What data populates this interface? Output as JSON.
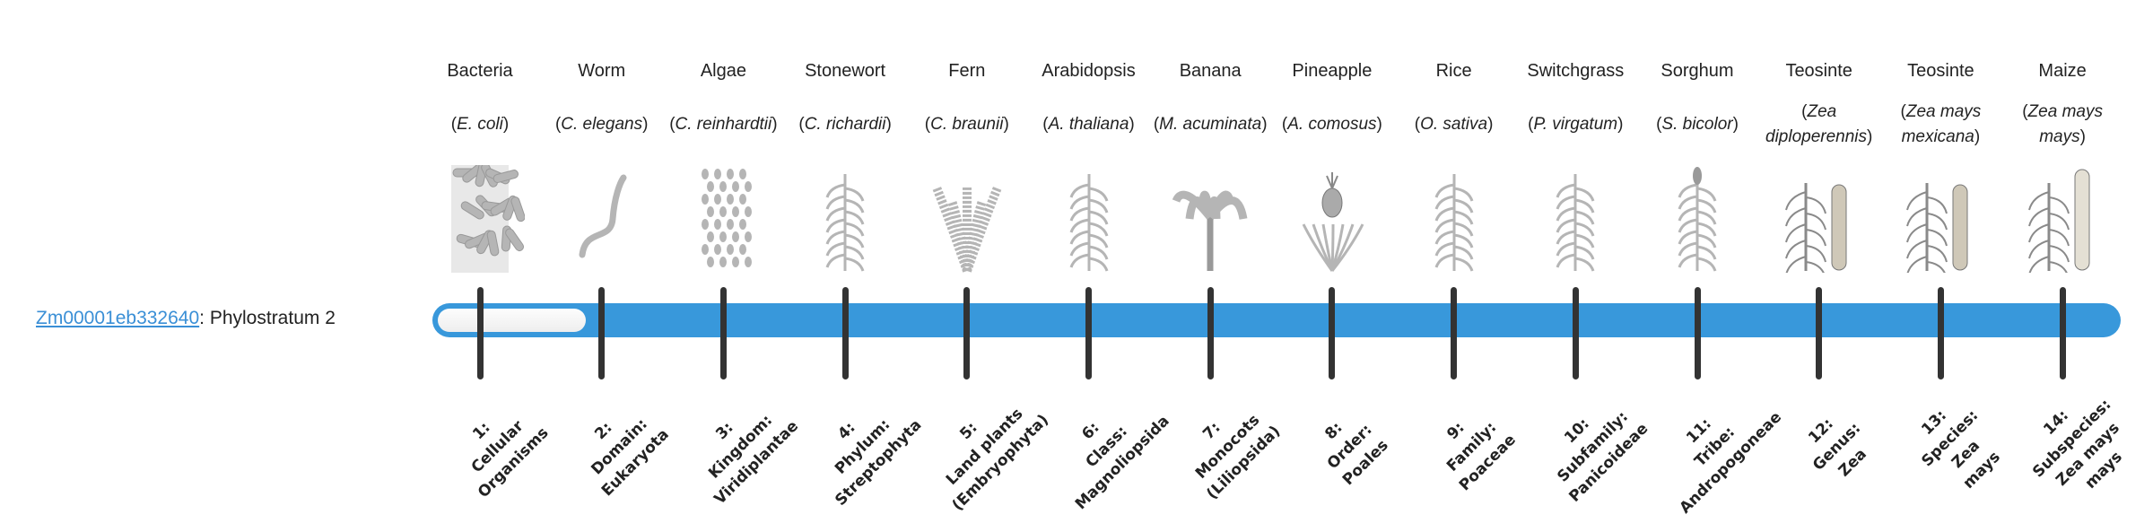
{
  "gene": {
    "id": "Zm00001eb332640",
    "separator": ": ",
    "stratum_text": "Phylostratum 2",
    "stratum_value": 2
  },
  "colors": {
    "bar": "#3898db",
    "link": "#3a8fd6",
    "tick": "#333333",
    "fill": "#f4f4f4"
  },
  "organisms": [
    {
      "name": "Bacteria",
      "species": "E. coli",
      "icon": "bacteria-icon"
    },
    {
      "name": "Worm",
      "species": "C. elegans",
      "icon": "worm-icon"
    },
    {
      "name": "Algae",
      "species": "C. reinhardtii",
      "icon": "algae-icon"
    },
    {
      "name": "Stonewort",
      "species": "C. richardii",
      "icon": "stonewort-icon"
    },
    {
      "name": "Fern",
      "species": "C. braunii",
      "icon": "fern-icon"
    },
    {
      "name": "Arabidopsis",
      "species": "A. thaliana",
      "icon": "arabidopsis-icon"
    },
    {
      "name": "Banana",
      "species": "M. acuminata",
      "icon": "banana-icon"
    },
    {
      "name": "Pineapple",
      "species": "A. comosus",
      "icon": "pineapple-icon"
    },
    {
      "name": "Rice",
      "species": "O. sativa",
      "icon": "rice-icon"
    },
    {
      "name": "Switchgrass",
      "species": "P. virgatum",
      "icon": "switchgrass-icon"
    },
    {
      "name": "Sorghum",
      "species": "S. bicolor",
      "icon": "sorghum-icon"
    },
    {
      "name": "Teosinte",
      "species": "Zea diploperennis",
      "icon": "teosinte-icon"
    },
    {
      "name": "Teosinte",
      "species": "Zea mays mexicana",
      "icon": "teosinte-icon"
    },
    {
      "name": "Maize",
      "species": "Zea mays mays",
      "icon": "maize-icon"
    }
  ],
  "ranks": [
    [
      "1:",
      "Cellular",
      "Organisms"
    ],
    [
      "2:",
      "Domain:",
      "Eukaryota"
    ],
    [
      "3:",
      "Kingdom:",
      "Viridiplantae"
    ],
    [
      "4:",
      "Phylum:",
      "Streptophyta"
    ],
    [
      "5:",
      "Land plants",
      "(Embryophyta)"
    ],
    [
      "6:",
      "Class:",
      "Magnoliopsida"
    ],
    [
      "7:",
      "Monocots",
      "(Liliopsida)"
    ],
    [
      "8:",
      "Order:",
      "Poales"
    ],
    [
      "9:",
      "Family:",
      "Poaceae"
    ],
    [
      "10:",
      "Subfamily:",
      "Panicoideae"
    ],
    [
      "11:",
      "Tribe:",
      "Andropogoneae"
    ],
    [
      "12:",
      "Genus:",
      "Zea"
    ],
    [
      "13:",
      "Species:",
      "Zea",
      "mays"
    ],
    [
      "14:",
      "Subspecies:",
      "Zea mays",
      "mays"
    ]
  ]
}
